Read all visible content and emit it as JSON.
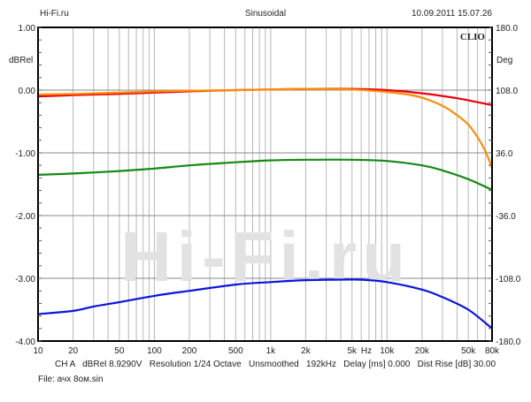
{
  "header": {
    "left": "Hi-Fi.ru",
    "center": "Sinusoidal",
    "right": "10.09.2011 15.07.26"
  },
  "logo": "CLIO",
  "watermark": "Hi-Fi.ru",
  "footer": {
    "info": "CH A   dBRel 8.9290V   Resolution 1/24 Octave   Unsmoothed   192kHz   Delay [ms] 0.000   Dist Rise [dB] 30.00",
    "file": "File: ачх 8ом.sin"
  },
  "chart_data": {
    "type": "line",
    "xscale": "log",
    "xlim": [
      10,
      80000
    ],
    "ylim": [
      -4,
      1
    ],
    "y2lim": [
      -180,
      180
    ],
    "ylabel": "dBRel",
    "y2label": "Deg",
    "xunit": "Hz",
    "grid": true,
    "x_ticks": [
      {
        "v": 10,
        "l": "10"
      },
      {
        "v": 20,
        "l": "20"
      },
      {
        "v": 50,
        "l": "50"
      },
      {
        "v": 100,
        "l": "100"
      },
      {
        "v": 200,
        "l": "200"
      },
      {
        "v": 500,
        "l": "500"
      },
      {
        "v": 1000,
        "l": "1k"
      },
      {
        "v": 2000,
        "l": "2k"
      },
      {
        "v": 5000,
        "l": "5k"
      },
      {
        "v": 10000,
        "l": "10k"
      },
      {
        "v": 20000,
        "l": "20k"
      },
      {
        "v": 50000,
        "l": "50k"
      },
      {
        "v": 80000,
        "l": "80k"
      }
    ],
    "y_ticks": [
      "1.00",
      "0.00",
      "-1.00",
      "-2.00",
      "-3.00",
      "-4.00"
    ],
    "y2_ticks": [
      "180.0",
      "108.0",
      "36.0",
      "-36.0",
      "-108.0",
      "-180.0"
    ],
    "series": [
      {
        "color": "#e8000b",
        "x": [
          10,
          20,
          50,
          100,
          200,
          500,
          1000,
          2000,
          5000,
          10000,
          20000,
          40000,
          80000
        ],
        "y": [
          -0.1,
          -0.08,
          -0.06,
          -0.04,
          -0.02,
          0.0,
          0.01,
          0.02,
          0.02,
          0.0,
          -0.05,
          -0.13,
          -0.24
        ]
      },
      {
        "color": "#ff8c00",
        "x": [
          10,
          20,
          50,
          100,
          200,
          500,
          1000,
          2000,
          5000,
          10000,
          15000,
          20000,
          30000,
          40000,
          50000,
          60000,
          70000,
          80000
        ],
        "y": [
          -0.07,
          -0.06,
          -0.04,
          -0.02,
          -0.01,
          0.0,
          0.01,
          0.02,
          0.01,
          -0.03,
          -0.07,
          -0.12,
          -0.25,
          -0.4,
          -0.55,
          -0.75,
          -0.97,
          -1.24
        ]
      },
      {
        "color": "#138a13",
        "x": [
          10,
          20,
          50,
          100,
          200,
          500,
          1000,
          2000,
          5000,
          10000,
          20000,
          30000,
          50000,
          80000
        ],
        "y": [
          -1.35,
          -1.33,
          -1.29,
          -1.25,
          -1.2,
          -1.15,
          -1.12,
          -1.11,
          -1.11,
          -1.13,
          -1.2,
          -1.28,
          -1.42,
          -1.59
        ]
      },
      {
        "color": "#0a14e0",
        "x": [
          10,
          20,
          30,
          50,
          100,
          200,
          500,
          1000,
          2000,
          5000,
          7000,
          10000,
          20000,
          30000,
          50000,
          80000
        ],
        "y": [
          -3.57,
          -3.52,
          -3.45,
          -3.38,
          -3.28,
          -3.2,
          -3.1,
          -3.06,
          -3.03,
          -3.02,
          -3.03,
          -3.06,
          -3.18,
          -3.3,
          -3.5,
          -3.8
        ]
      }
    ]
  }
}
